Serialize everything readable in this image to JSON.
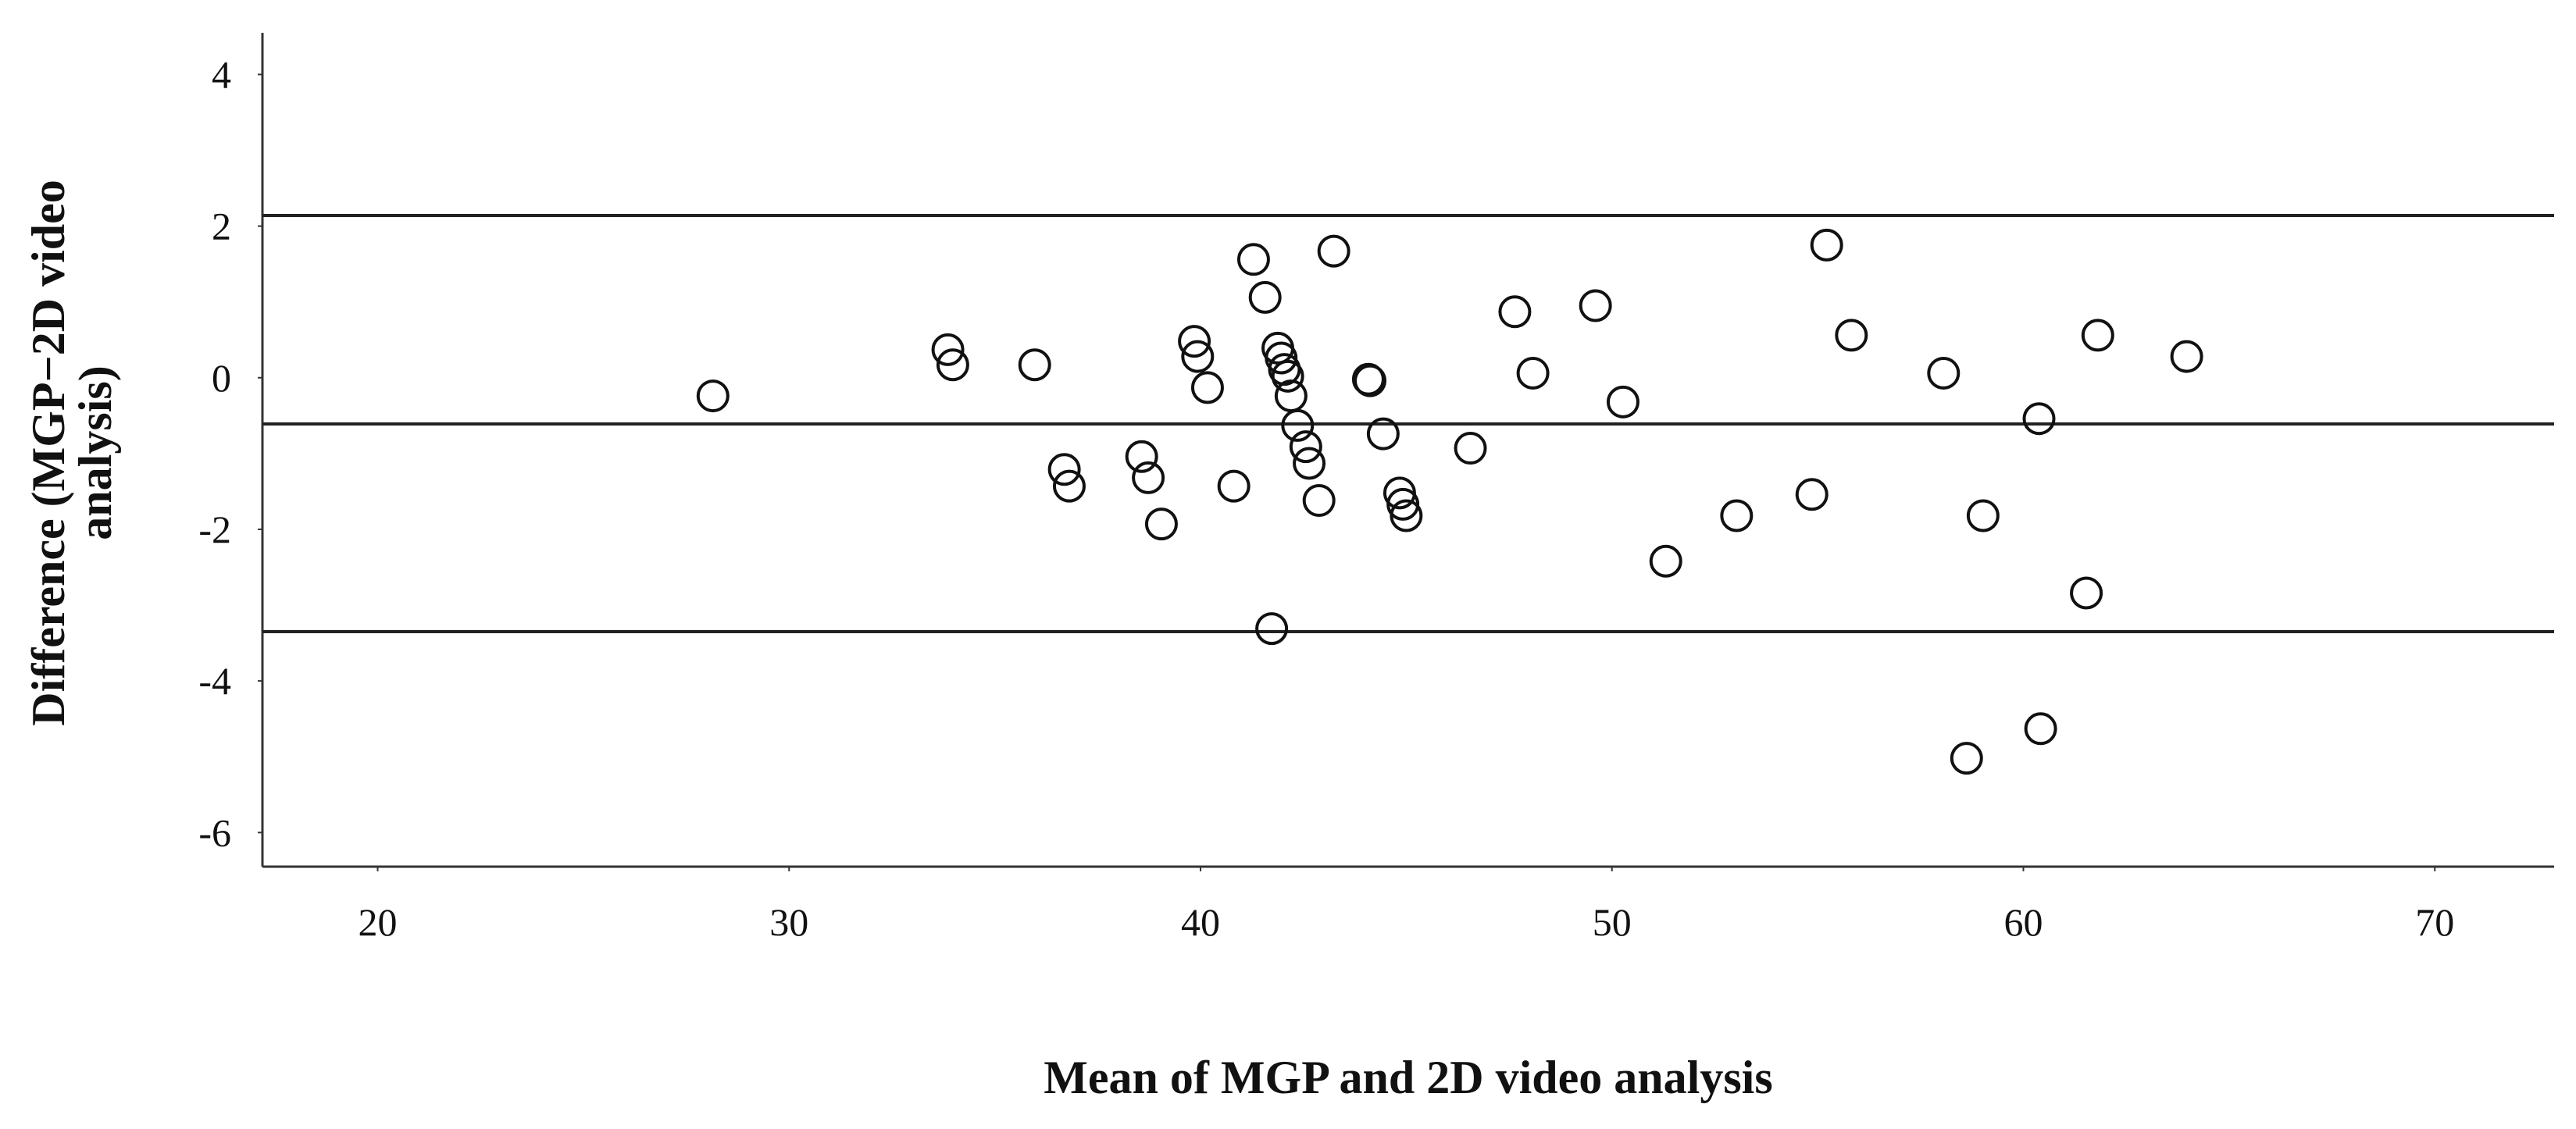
{
  "chart_data": {
    "type": "scatter",
    "xlabel": "Mean of MGP and 2D video analysis",
    "ylabel": [
      "Difference (MGP−2D video",
      "analysis)"
    ],
    "xlim": [
      17.2,
      72.9
    ],
    "ylim": [
      -6.45,
      4.55
    ],
    "xticks": [
      20,
      30,
      40,
      50,
      60,
      70
    ],
    "yticks": [
      -6,
      -4,
      -2,
      0,
      2,
      4
    ],
    "reference_lines": [
      2.14,
      -0.61,
      -3.35
    ],
    "marker_color": "#111111",
    "series": [
      {
        "x": [
          28.15,
          33.86,
          33.98,
          35.97,
          36.69,
          36.81,
          38.57,
          38.73,
          39.05,
          39.85,
          39.93,
          40.17,
          40.81,
          41.29,
          41.57,
          41.73,
          41.88,
          41.96,
          42.04,
          42.12,
          42.2,
          42.36,
          42.56,
          42.64,
          42.88,
          43.24,
          44.08,
          44.12,
          44.44,
          44.84,
          44.92,
          45.0,
          46.56,
          47.64,
          48.08,
          49.6,
          50.27,
          51.31,
          53.03,
          54.86,
          55.22,
          55.82,
          58.06,
          58.62,
          59.02,
          60.38,
          60.42,
          61.53,
          61.81,
          63.97
        ],
        "values": [
          -0.24,
          0.37,
          0.17,
          0.17,
          -1.21,
          -1.43,
          -1.04,
          -1.32,
          -1.93,
          0.48,
          0.28,
          -0.13,
          -1.43,
          1.56,
          1.06,
          -3.31,
          0.39,
          0.26,
          0.11,
          0.02,
          -0.24,
          -0.63,
          -0.91,
          -1.13,
          -1.62,
          1.67,
          -0.02,
          -0.04,
          -0.74,
          -1.52,
          -1.67,
          -1.82,
          -0.93,
          0.87,
          0.06,
          0.95,
          -0.32,
          -2.42,
          -1.82,
          -1.54,
          1.75,
          0.56,
          0.06,
          -5.02,
          -1.82,
          -0.54,
          -4.63,
          -2.84,
          0.56,
          0.28
        ]
      }
    ]
  }
}
